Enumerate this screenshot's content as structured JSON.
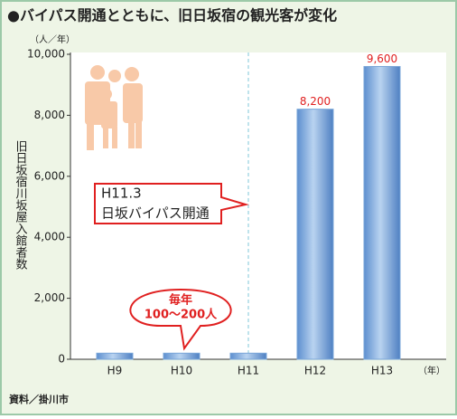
{
  "chart_data": {
    "type": "bar",
    "title": "●バイパス開通とともに、旧日坂宿の観光客が変化",
    "y_unit": "（人／年）",
    "y_label": "旧日坂宿川坂屋入館者数",
    "x_unit": "（年）",
    "categories": [
      "H9",
      "H10",
      "H11",
      "H12",
      "H13"
    ],
    "values": [
      200,
      200,
      200,
      8200,
      9600
    ],
    "value_labels": [
      null,
      null,
      null,
      "8,200",
      "9,600"
    ],
    "color": "#7aa6d8",
    "ylim": [
      0,
      10000
    ],
    "yticks": [
      0,
      {
        "value": 2000,
        "label": "2,000"
      },
      {
        "value": 4000,
        "label": "4,000"
      },
      {
        "value": 6000,
        "label": "6,000"
      },
      {
        "value": 8000,
        "label": "8,000"
      },
      {
        "value": 10000,
        "label": "10,000"
      }
    ],
    "annotations": [
      [
        "H11.3",
        "日坂バイパス開通"
      ],
      [
        "毎年",
        "100〜200人"
      ]
    ],
    "source": "資料／掛川市"
  }
}
